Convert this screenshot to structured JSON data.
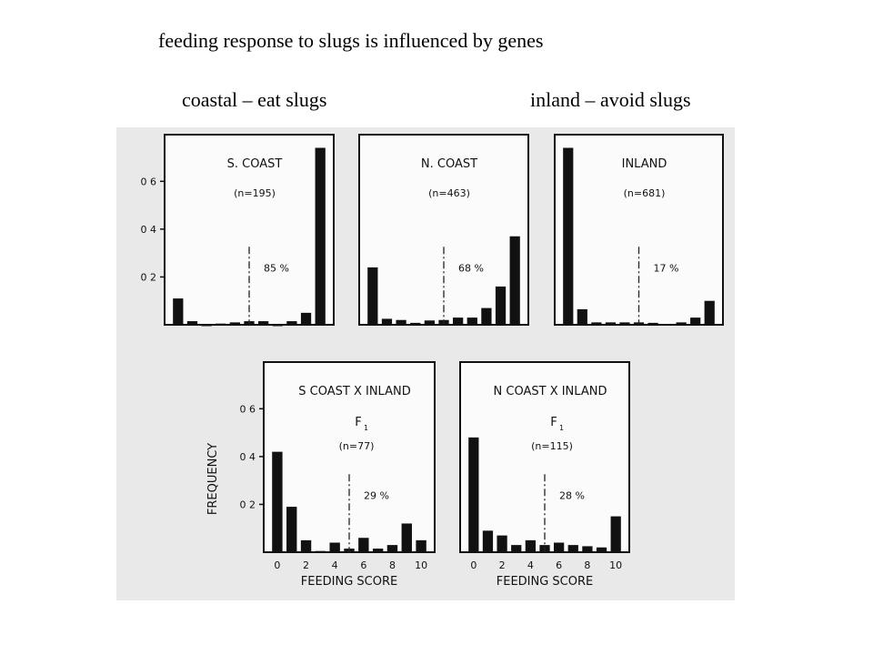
{
  "slide": {
    "title": "feeding response to slugs is influenced by genes",
    "label_left": "coastal – eat slugs",
    "label_right": "inland – avoid slugs"
  },
  "chart_data": [
    {
      "type": "bar",
      "title": "S. COAST",
      "sample": "(n=195)",
      "percent": "85 %",
      "bins": [
        0,
        1,
        2,
        3,
        4,
        5,
        6,
        7,
        8,
        9,
        10
      ],
      "values": [
        0.11,
        0.015,
        0,
        0.005,
        0.01,
        0.015,
        0.015,
        0,
        0.015,
        0.05,
        0.74
      ],
      "yticks": [
        "0 6",
        "0 4",
        "0 2"
      ],
      "ylim": [
        0,
        0.78
      ]
    },
    {
      "type": "bar",
      "title": "N. COAST",
      "sample": "(n=463)",
      "percent": "68 %",
      "bins": [
        0,
        1,
        2,
        3,
        4,
        5,
        6,
        7,
        8,
        9,
        10
      ],
      "values": [
        0.24,
        0.025,
        0.02,
        0.008,
        0.018,
        0.02,
        0.03,
        0.03,
        0.07,
        0.16,
        0.37
      ],
      "ylim": [
        0,
        0.78
      ]
    },
    {
      "type": "bar",
      "title": "INLAND",
      "sample": "(n=681)",
      "percent": "17 %",
      "bins": [
        0,
        1,
        2,
        3,
        4,
        5,
        6,
        7,
        8,
        9,
        10
      ],
      "values": [
        0.74,
        0.065,
        0.01,
        0.01,
        0.01,
        0.01,
        0.008,
        0.003,
        0.01,
        0.03,
        0.1
      ],
      "ylim": [
        0,
        0.78
      ]
    },
    {
      "type": "bar",
      "title": "S COAST X INLAND",
      "generation": "F",
      "generation_sub": "1",
      "sample": "(n=77)",
      "percent": "29 %",
      "bins": [
        0,
        1,
        2,
        3,
        4,
        5,
        6,
        7,
        8,
        9,
        10
      ],
      "values": [
        0.42,
        0.19,
        0.05,
        0.005,
        0.04,
        0.015,
        0.06,
        0.015,
        0.03,
        0.12,
        0.05
      ],
      "yticks": [
        "0 6",
        "0 4",
        "0 2"
      ],
      "xticks": [
        "0",
        "2",
        "4",
        "6",
        "8",
        "10"
      ],
      "ylabel": "FREQUENCY",
      "xlabel": "FEEDING SCORE",
      "ylim": [
        0,
        0.78
      ]
    },
    {
      "type": "bar",
      "title": "N COAST X INLAND",
      "generation": "F",
      "generation_sub": "1",
      "sample": "(n=115)",
      "percent": "28 %",
      "bins": [
        0,
        1,
        2,
        3,
        4,
        5,
        6,
        7,
        8,
        9,
        10
      ],
      "values": [
        0.48,
        0.09,
        0.07,
        0.03,
        0.05,
        0.03,
        0.04,
        0.03,
        0.025,
        0.02,
        0.15
      ],
      "xticks": [
        "0",
        "2",
        "4",
        "6",
        "8",
        "10"
      ],
      "xlabel": "FEEDING SCORE",
      "ylim": [
        0,
        0.78
      ]
    }
  ]
}
